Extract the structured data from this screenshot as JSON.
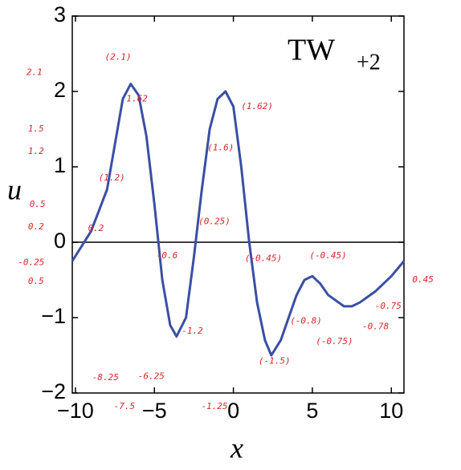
{
  "chart_data": {
    "type": "line",
    "xlabel": "x",
    "ylabel": "u",
    "label": "TW",
    "label_sub": "+2",
    "xlim": [
      -10.2,
      10.8
    ],
    "ylim": [
      -2,
      3
    ],
    "xticks": [
      {
        "value": -10,
        "label": "−10"
      },
      {
        "value": -5,
        "label": "−5"
      },
      0,
      5,
      10
    ],
    "yticks": [
      {
        "value": -2,
        "label": "−2"
      },
      {
        "value": -1,
        "label": "−1"
      },
      0,
      1,
      2,
      3
    ],
    "series": [
      {
        "color": "#3a4fa3",
        "x": [
          -10.2,
          -9,
          -8,
          -7.5,
          -7,
          -6.5,
          -6,
          -5.5,
          -5,
          -4.5,
          -4,
          -3.6,
          -3,
          -2.5,
          -2,
          -1.5,
          -1,
          -0.5,
          0,
          0.5,
          1,
          1.5,
          2,
          2.4,
          3,
          3.5,
          4,
          4.5,
          5,
          5.5,
          6,
          7,
          7.5,
          8,
          9,
          10,
          10.8
        ],
        "values": [
          -0.25,
          0.15,
          0.7,
          1.3,
          1.9,
          2.1,
          1.95,
          1.4,
          0.5,
          -0.5,
          -1.1,
          -1.25,
          -1.0,
          -0.2,
          0.7,
          1.5,
          1.9,
          2.0,
          1.8,
          1.0,
          0.0,
          -0.8,
          -1.3,
          -1.5,
          -1.3,
          -1.0,
          -0.7,
          -0.5,
          -0.45,
          -0.55,
          -0.7,
          -0.85,
          -0.85,
          -0.8,
          -0.65,
          -0.45,
          -0.25
        ]
      }
    ],
    "annotation_color": "#d8262a",
    "annotations": [
      {
        "text": "(2.1)",
        "x": -7.3,
        "y": 2.45
      },
      {
        "text": "2.1",
        "x": -12.6,
        "y": 2.25
      },
      {
        "text": "1.62",
        "x": -6.1,
        "y": 1.9
      },
      {
        "text": "(1.62)",
        "x": 1.5,
        "y": 1.8
      },
      {
        "text": "(1.6)",
        "x": -0.8,
        "y": 1.25
      },
      {
        "text": "1.5",
        "x": -12.5,
        "y": 1.5
      },
      {
        "text": "1.2",
        "x": -12.5,
        "y": 1.2
      },
      {
        "text": "(1.2)",
        "x": -7.7,
        "y": 0.85
      },
      {
        "text": "0.5",
        "x": -12.4,
        "y": 0.5
      },
      {
        "text": "0.2",
        "x": -12.5,
        "y": 0.2
      },
      {
        "text": "0.2",
        "x": -8.7,
        "y": 0.18
      },
      {
        "text": "(0.25)",
        "x": -1.2,
        "y": 0.27
      },
      {
        "text": "-0.25",
        "x": -12.8,
        "y": -0.27
      },
      {
        "text": "-0.6",
        "x": -4.2,
        "y": -0.18
      },
      {
        "text": "(-0.45)",
        "x": 1.9,
        "y": -0.22
      },
      {
        "text": "(-0.45)",
        "x": 6.0,
        "y": -0.18
      },
      {
        "text": "0.5",
        "x": -12.5,
        "y": -0.52
      },
      {
        "text": "0.45",
        "x": 12.0,
        "y": -0.5
      },
      {
        "text": "-0.75",
        "x": 9.8,
        "y": -0.85
      },
      {
        "text": "(-0.8)",
        "x": 4.6,
        "y": -1.05
      },
      {
        "text": "-0.78",
        "x": 9.0,
        "y": -1.12
      },
      {
        "text": "-1.2",
        "x": -2.6,
        "y": -1.18
      },
      {
        "text": "(-0.75)",
        "x": 6.4,
        "y": -1.32
      },
      {
        "text": "(-1.5)",
        "x": 2.6,
        "y": -1.58
      },
      {
        "text": "-8.25",
        "x": -8.1,
        "y": -1.8
      },
      {
        "text": "-6.25",
        "x": -5.2,
        "y": -1.78
      },
      {
        "text": "-7.5",
        "x": -6.9,
        "y": -2.18
      },
      {
        "text": "-1.25",
        "x": -1.2,
        "y": -2.18
      }
    ]
  }
}
